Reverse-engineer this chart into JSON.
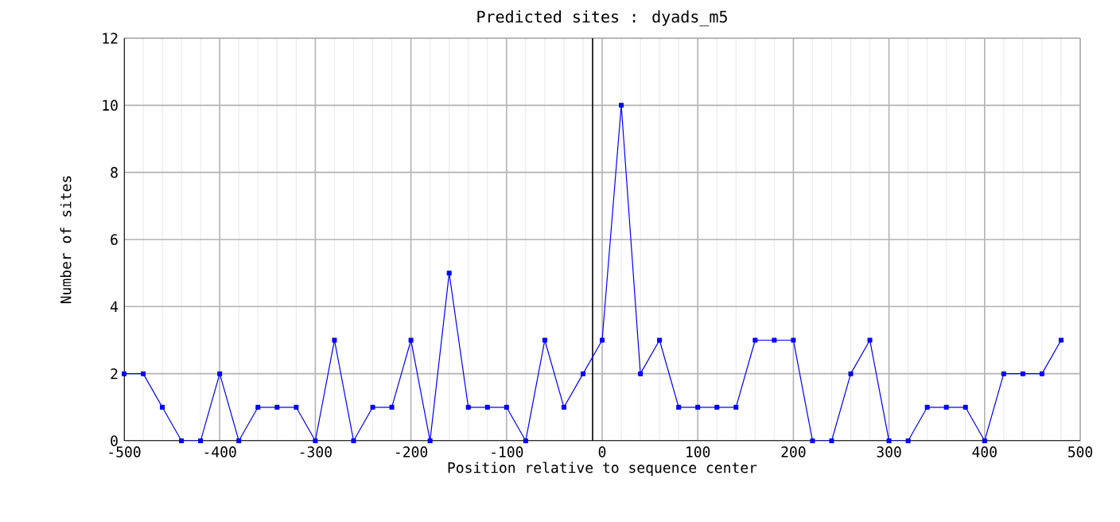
{
  "chart_data": {
    "type": "line",
    "title": "Predicted sites : dyads_m5",
    "xlabel": "Position relative to sequence center",
    "ylabel": "Number of sites",
    "x": [
      -500,
      -480,
      -460,
      -440,
      -420,
      -400,
      -380,
      -360,
      -340,
      -320,
      -300,
      -280,
      -260,
      -240,
      -220,
      -200,
      -180,
      -160,
      -140,
      -120,
      -100,
      -80,
      -60,
      -40,
      -20,
      0,
      20,
      40,
      60,
      80,
      100,
      120,
      140,
      160,
      180,
      200,
      220,
      240,
      260,
      280,
      300,
      320,
      340,
      360,
      380,
      400,
      420,
      440,
      460,
      480
    ],
    "series": [
      {
        "color": "#0000ff",
        "values": [
          2,
          2,
          1,
          0,
          0,
          2,
          0,
          1,
          1,
          1,
          0,
          3,
          0,
          1,
          1,
          3,
          0,
          5,
          1,
          1,
          1,
          0,
          3,
          1,
          2,
          3,
          10,
          2,
          3,
          1,
          1,
          1,
          1,
          3,
          3,
          3,
          0,
          0,
          2,
          3,
          0,
          0,
          1,
          1,
          1,
          0,
          2,
          2,
          2,
          3
        ]
      }
    ],
    "xlim": [
      -500,
      500
    ],
    "ylim": [
      0,
      12
    ],
    "xticks": [
      -500,
      -400,
      -300,
      -200,
      -100,
      0,
      100,
      200,
      300,
      400,
      500
    ],
    "yticks": [
      0,
      2,
      4,
      6,
      8,
      10,
      12
    ],
    "ref_lines": [
      {
        "axis": "x",
        "value": -10,
        "color": "#000000"
      }
    ],
    "grid": true,
    "marker": "square",
    "line_style": "solid"
  }
}
